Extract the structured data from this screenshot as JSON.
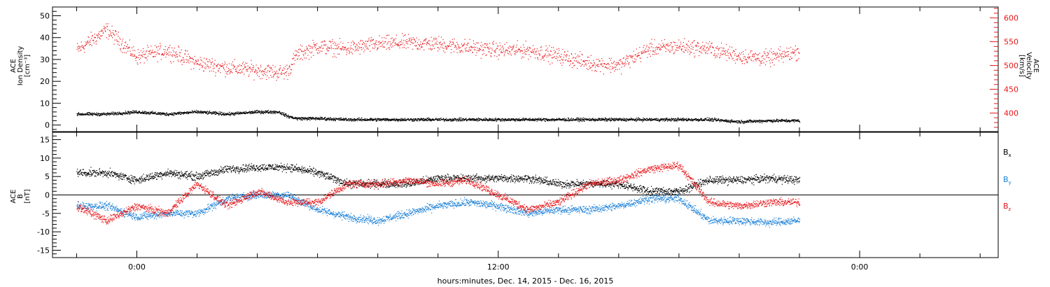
{
  "chart_data": [
    {
      "type": "scatter",
      "panel": "top",
      "left_axis": {
        "label_lines": [
          "ACE",
          "Ion Density",
          "[cm⁻³]"
        ],
        "ylim": [
          -3,
          54
        ],
        "ticks": [
          0,
          10,
          20,
          30,
          40,
          50
        ],
        "tick_labels": [
          "0",
          "10",
          "20",
          "30",
          "40",
          "50"
        ]
      },
      "right_axis": {
        "label_lines": [
          "ACE",
          "Velocity",
          "[km/s]"
        ],
        "ylim": [
          361,
          623
        ],
        "ticks": [
          400,
          450,
          500,
          550,
          600
        ],
        "tick_labels": [
          "400",
          "450",
          "500",
          "550",
          "600"
        ],
        "color": "#e8161a"
      },
      "series": [
        {
          "axis": "right",
          "color": "#e8161a",
          "x": [
            -2.0,
            -1.0,
            0.0,
            1.0,
            2.0,
            3.0,
            4.0,
            4.7,
            5.0,
            5.3,
            6.0,
            7.0,
            8.0,
            9.0,
            10.0,
            11.0,
            12.0,
            13.0,
            14.0,
            15.0,
            16.0,
            17.0,
            18.0,
            19.0,
            20.0,
            21.0,
            22.0
          ],
          "y": [
            532,
            575,
            518,
            532,
            505,
            495,
            490,
            485,
            488,
            522,
            540,
            535,
            545,
            548,
            545,
            538,
            532,
            532,
            520,
            505,
            500,
            535,
            540,
            535,
            520,
            515,
            530
          ]
        },
        {
          "axis": "left",
          "color": "#000000",
          "x": [
            -2.0,
            -1.0,
            0.0,
            1.0,
            2.0,
            3.0,
            4.0,
            4.7,
            5.0,
            5.3,
            6.0,
            7.0,
            8.0,
            9.0,
            10.0,
            11.0,
            12.0,
            13.0,
            14.0,
            15.0,
            16.0,
            17.0,
            18.0,
            19.0,
            20.0,
            21.0,
            22.0
          ],
          "y": [
            5,
            5,
            6,
            5,
            6,
            5,
            6,
            6,
            4,
            3,
            3,
            2.5,
            2.5,
            2.5,
            2.5,
            2.5,
            2.5,
            2.5,
            2.5,
            2.5,
            2.5,
            2.5,
            2.5,
            2.5,
            1.5,
            2,
            2
          ]
        }
      ]
    },
    {
      "type": "scatter",
      "panel": "bottom",
      "left_axis": {
        "label_lines": [
          "ACE",
          "B",
          "[nT]"
        ],
        "ylim": [
          -17,
          17
        ],
        "ticks": [
          -15,
          -10,
          -5,
          0,
          5,
          10,
          15
        ],
        "tick_labels": [
          "-15",
          "-10",
          "-5",
          "0",
          "5",
          "10",
          "15"
        ]
      },
      "zero_line": true,
      "legend": [
        "Bx",
        "By",
        "Bz"
      ],
      "legend_placement": "right",
      "series": [
        {
          "name": "Bx",
          "color": "#000000",
          "x": [
            -2.0,
            -1.0,
            0.0,
            1.0,
            2.0,
            3.0,
            4.0,
            5.0,
            6.0,
            7.0,
            8.0,
            9.0,
            10.0,
            11.0,
            12.0,
            13.0,
            14.0,
            15.0,
            16.0,
            17.0,
            18.0,
            19.0,
            20.0,
            21.0,
            22.0
          ],
          "y": [
            6,
            6,
            4,
            6,
            5,
            7,
            7.5,
            7.5,
            6,
            3,
            3,
            3,
            4.5,
            4.5,
            4.5,
            4.5,
            3,
            3,
            3,
            1,
            1,
            4,
            4,
            4.5,
            4
          ]
        },
        {
          "name": "By",
          "color": "#1a7fd6",
          "x": [
            -2.0,
            -1.0,
            0.0,
            1.0,
            2.0,
            3.0,
            4.0,
            5.0,
            6.0,
            7.0,
            8.0,
            9.0,
            10.0,
            11.0,
            12.0,
            13.0,
            14.0,
            15.0,
            16.0,
            17.0,
            18.0,
            19.0,
            20.0,
            21.0,
            22.0
          ],
          "y": [
            -3,
            -3,
            -6,
            -5,
            -5,
            -1,
            0,
            0,
            -4,
            -6,
            -7,
            -5,
            -3,
            -2,
            -3,
            -5,
            -4,
            -4,
            -3,
            -1,
            -1,
            -7,
            -7,
            -7.5,
            -7
          ]
        },
        {
          "name": "Bz",
          "color": "#e8161a",
          "x": [
            -2.0,
            -1.0,
            0.0,
            1.0,
            2.0,
            3.0,
            4.0,
            5.0,
            6.0,
            7.0,
            8.0,
            9.0,
            10.0,
            11.0,
            12.0,
            13.0,
            14.0,
            15.0,
            16.0,
            17.0,
            18.0,
            19.0,
            20.0,
            21.0,
            22.0
          ],
          "y": [
            -3,
            -7,
            -3,
            -5,
            3,
            -3,
            1,
            -2,
            -2,
            3,
            3,
            4,
            3,
            4,
            0,
            -4,
            -2,
            3,
            4,
            7,
            8,
            -2,
            -3,
            -2,
            -2
          ]
        }
      ]
    }
  ],
  "x_axis": {
    "label": "hours:minutes, Dec. 14, 2015 - Dec. 16, 2015",
    "range_hours": [
      -2.8,
      28.6
    ],
    "labeled_ticks": [
      0,
      12,
      24
    ],
    "tick_labels": [
      "0:00",
      "12:00",
      "0:00"
    ],
    "minor_tick_step_hours": 2
  }
}
